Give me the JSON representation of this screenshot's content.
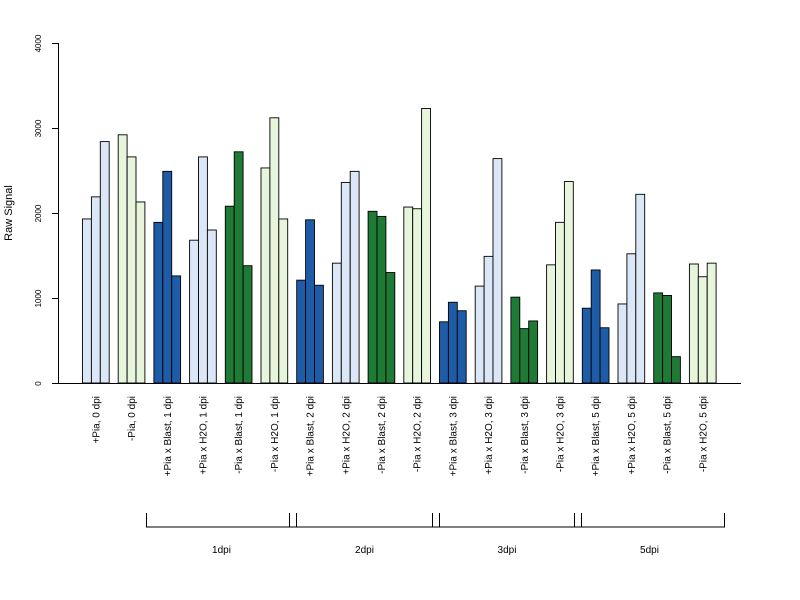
{
  "chart_data": {
    "type": "bar",
    "ylabel": "Raw Signal",
    "ylim": [
      0,
      4000
    ],
    "yticks": [
      0,
      1000,
      2000,
      3000,
      4000
    ],
    "colors": {
      "light_blue": "#dbe7f6",
      "dark_blue": "#1f5ca8",
      "light_green": "#e6f5dc",
      "dark_green": "#1e7a35"
    },
    "categories": [
      "+Pia, 0 dpi",
      "-Pia, 0 dpi",
      "+Pia x Blast, 1 dpi",
      "+Pia x H2O, 1 dpi",
      "-Pia x Blast, 1 dpi",
      "-Pia x H2O, 1 dpi",
      "+Pia x Blast, 2 dpi",
      "+Pia x H2O, 2 dpi",
      "-Pia x Blast, 2 dpi",
      "-Pia x H2O, 2 dpi",
      "+Pia x Blast, 3 dpi",
      "+Pia x H2O, 3 dpi",
      "-Pia x Blast, 3 dpi",
      "-Pia x H2O, 3 dpi",
      "+Pia x Blast, 5 dpi",
      "+Pia x H2O, 5 dpi",
      "-Pia x Blast, 5 dpi",
      "-Pia x H2O, 5 dpi"
    ],
    "category_colors": [
      "light_blue",
      "light_green",
      "dark_blue",
      "light_blue",
      "dark_green",
      "light_green",
      "dark_blue",
      "light_blue",
      "dark_green",
      "light_green",
      "dark_blue",
      "light_blue",
      "dark_green",
      "light_green",
      "dark_blue",
      "light_blue",
      "dark_green",
      "light_green"
    ],
    "values": [
      [
        1930,
        2190,
        2840
      ],
      [
        2920,
        2660,
        2130
      ],
      [
        1890,
        2490,
        1260
      ],
      [
        1680,
        2660,
        1800
      ],
      [
        2080,
        2720,
        1380
      ],
      [
        2530,
        3120,
        1930
      ],
      [
        1210,
        1920,
        1150
      ],
      [
        1410,
        2360,
        2490
      ],
      [
        2020,
        1960,
        1300
      ],
      [
        2070,
        2050,
        3230
      ],
      [
        720,
        950,
        850
      ],
      [
        1140,
        1490,
        2640
      ],
      [
        1010,
        640,
        730
      ],
      [
        1390,
        1890,
        2370
      ],
      [
        880,
        1330,
        650
      ],
      [
        930,
        1520,
        2220
      ],
      [
        1060,
        1030,
        310
      ],
      [
        1400,
        1250,
        1410
      ]
    ],
    "groups": [
      {
        "label": "1dpi",
        "first": 2,
        "last": 5
      },
      {
        "label": "2dpi",
        "first": 6,
        "last": 9
      },
      {
        "label": "3dpi",
        "first": 10,
        "last": 13
      },
      {
        "label": "5dpi",
        "first": 14,
        "last": 17
      }
    ]
  }
}
